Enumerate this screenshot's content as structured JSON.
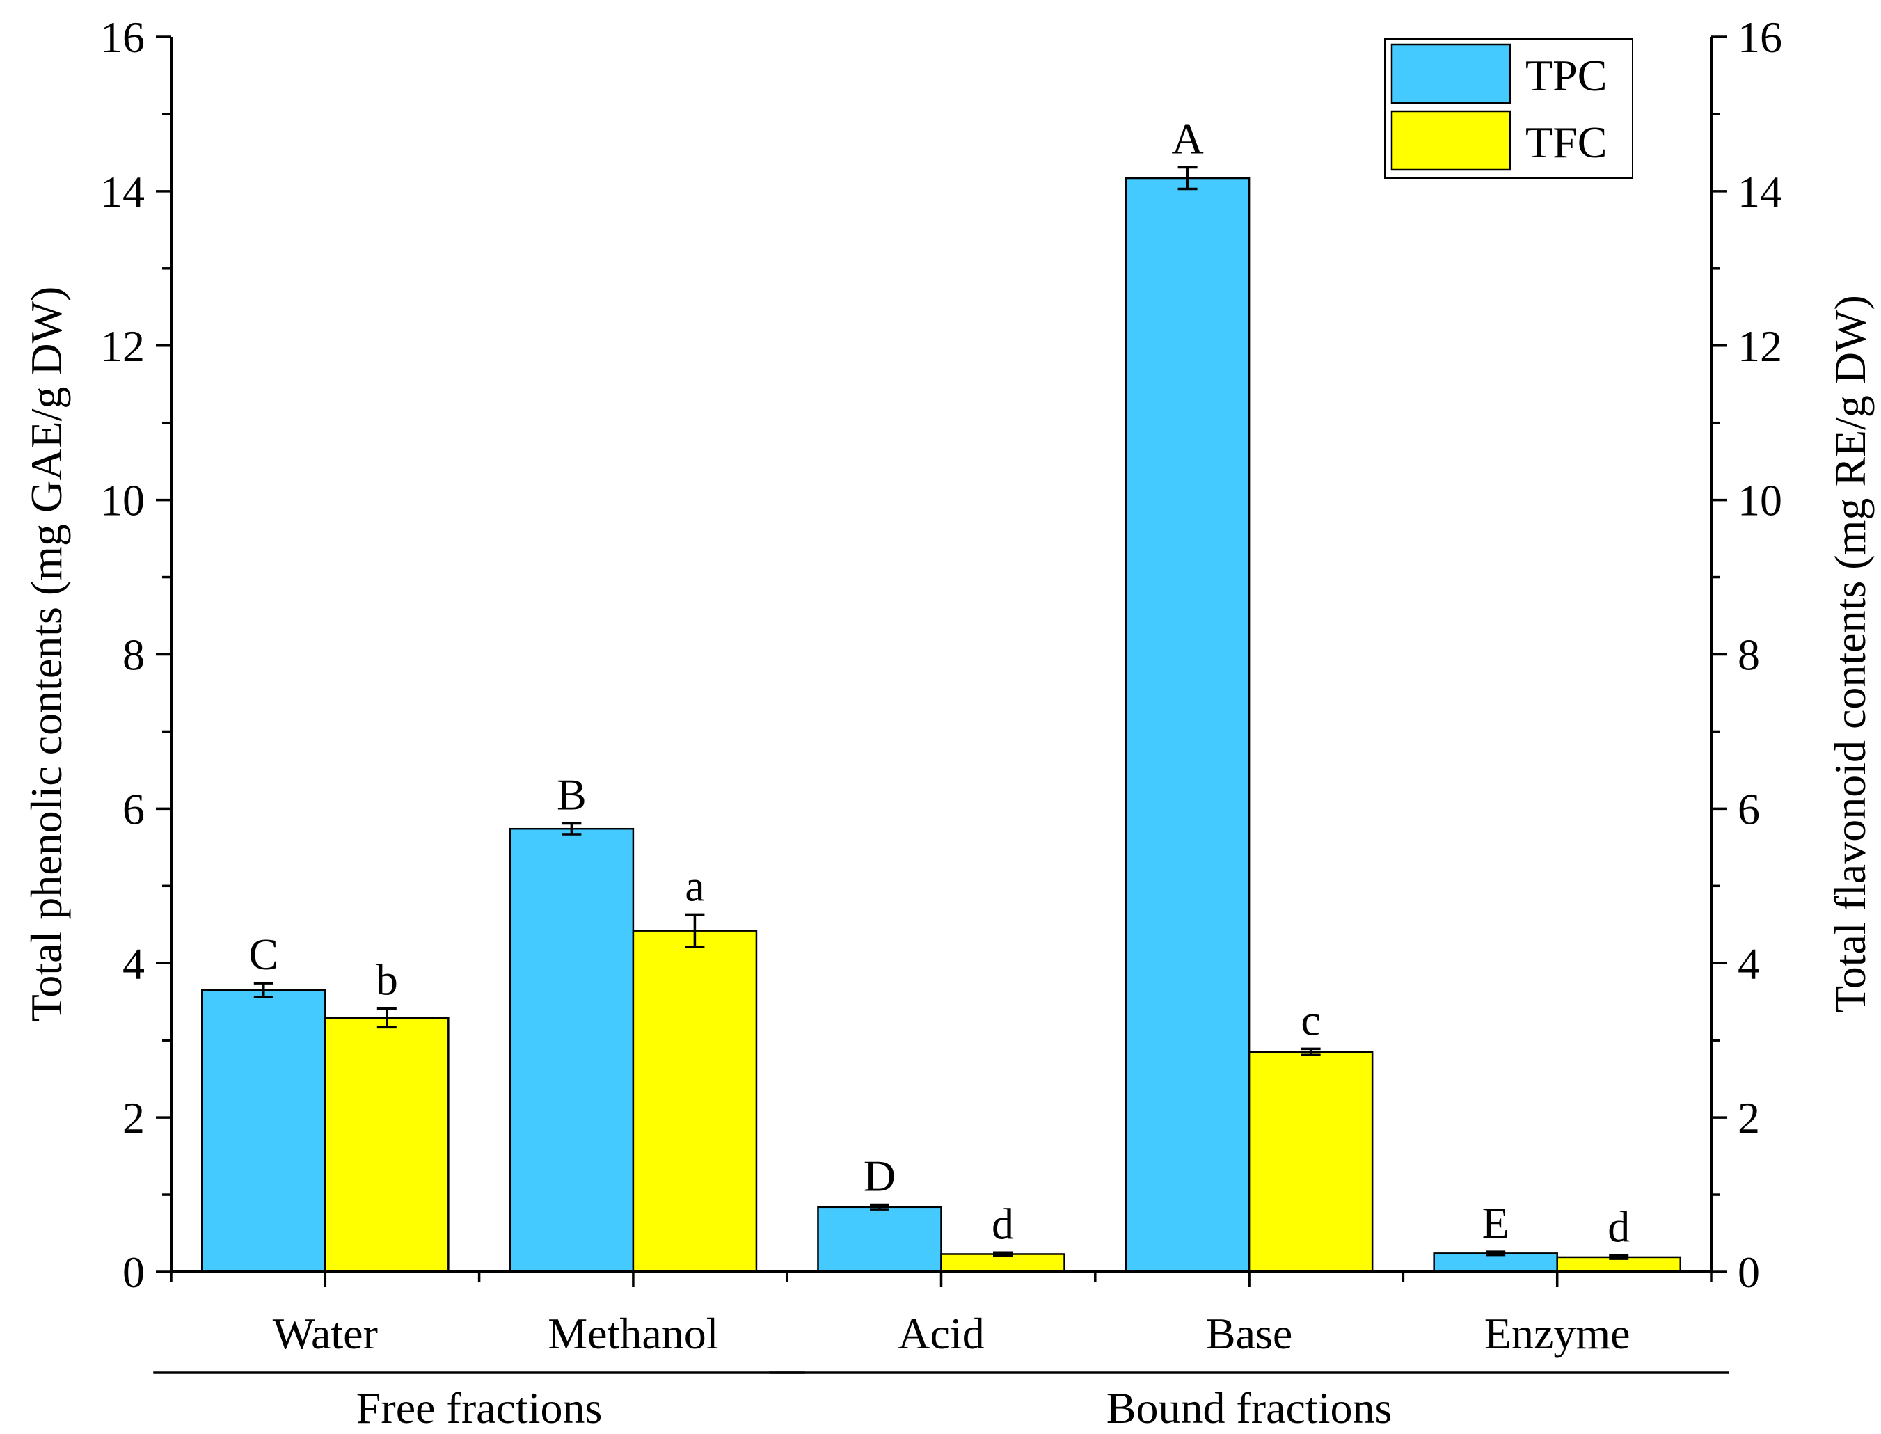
{
  "chart_data": {
    "type": "bar",
    "categories": [
      "Water",
      "Methanol",
      "Acid",
      "Base",
      "Enzyme"
    ],
    "series": [
      {
        "name": "TPC",
        "color": "#45CAFF",
        "values": [
          3.65,
          5.74,
          0.84,
          14.17,
          0.24
        ],
        "errors": [
          0.09,
          0.07,
          0.03,
          0.14,
          0.02
        ],
        "letters": [
          "C",
          "B",
          "D",
          "A",
          "E"
        ]
      },
      {
        "name": "TFC",
        "color": "#FFFF00",
        "values": [
          3.29,
          4.42,
          0.23,
          2.85,
          0.19
        ],
        "errors": [
          0.12,
          0.21,
          0.02,
          0.04,
          0.02
        ],
        "letters": [
          "b",
          "a",
          "d",
          "c",
          "d"
        ]
      }
    ],
    "ylabel": "Total phenolic contents (mg GAE/g DW)",
    "y2label": "Total flavonoid contents (mg RE/g DW)",
    "ylim": [
      0,
      16
    ],
    "y2lim": [
      0,
      16
    ],
    "yticks": [
      0,
      2,
      4,
      6,
      8,
      10,
      12,
      14,
      16
    ],
    "groups": [
      {
        "label": "Free fractions",
        "categories": [
          "Water",
          "Methanol"
        ]
      },
      {
        "label": "Bound fractions",
        "categories": [
          "Acid",
          "Base",
          "Enzyme"
        ]
      }
    ],
    "legend_position": "top-right",
    "grid": false
  }
}
